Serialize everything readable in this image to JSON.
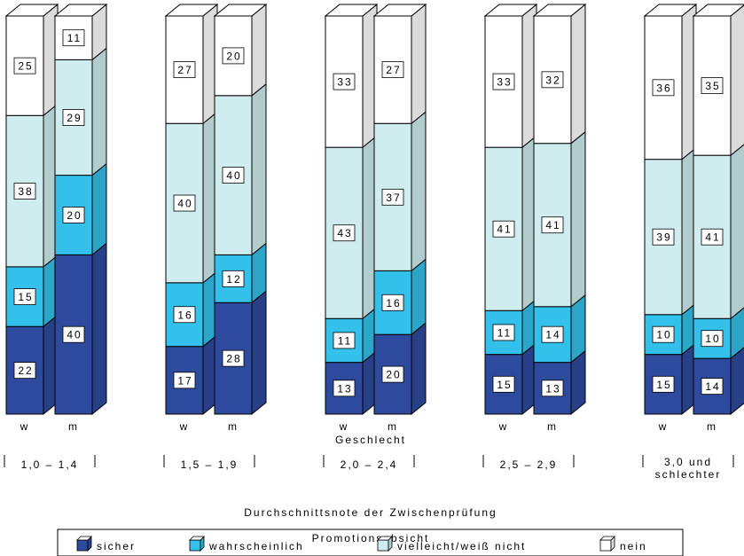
{
  "chart_data": {
    "type": "bar",
    "stacked": true,
    "style": "3d",
    "xlabel": "Durchschnittsnote der Zwischenprüfung",
    "sublabel": "Geschlecht",
    "groups": [
      {
        "label": "1,0 – 1,4",
        "label_lines": [
          "1,0 – 1,4"
        ]
      },
      {
        "label": "1,5 – 1,9",
        "label_lines": [
          "1,5 – 1,9"
        ]
      },
      {
        "label": "2,0 – 2,4",
        "label_lines": [
          "2,0 – 2,4"
        ]
      },
      {
        "label": "2,5 – 2,9",
        "label_lines": [
          "2,5 – 2,9"
        ]
      },
      {
        "label": "3,0 und schlechter",
        "label_lines": [
          "3,0 und",
          "schlechter"
        ]
      }
    ],
    "bars_per_group": [
      "w",
      "m"
    ],
    "series": [
      {
        "name": "sicher",
        "color": "#2E4A9E",
        "values": [
          [
            22,
            40
          ],
          [
            17,
            28
          ],
          [
            13,
            20
          ],
          [
            15,
            13
          ],
          [
            15,
            14
          ]
        ]
      },
      {
        "name": "wahrscheinlich",
        "color": "#33C0EA",
        "values": [
          [
            15,
            20
          ],
          [
            16,
            12
          ],
          [
            11,
            16
          ],
          [
            11,
            14
          ],
          [
            10,
            10
          ]
        ]
      },
      {
        "name": "vielleicht/weiß nicht",
        "color": "#CFECEE",
        "values": [
          [
            38,
            29
          ],
          [
            40,
            40
          ],
          [
            43,
            37
          ],
          [
            41,
            41
          ],
          [
            39,
            41
          ]
        ]
      },
      {
        "name": "nein",
        "color": "#FFFFFF",
        "values": [
          [
            25,
            11
          ],
          [
            27,
            20
          ],
          [
            33,
            27
          ],
          [
            33,
            32
          ],
          [
            36,
            35
          ]
        ]
      }
    ],
    "legend": {
      "title": "Promotionsabsicht",
      "position": "bottom"
    },
    "ylim": [
      0,
      100
    ]
  }
}
